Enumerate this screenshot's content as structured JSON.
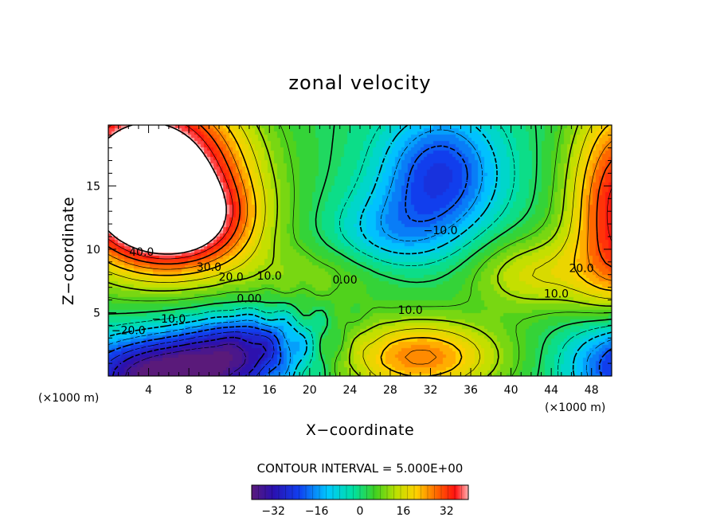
{
  "chart_data": {
    "type": "heatmap",
    "subtype": "filled-contour",
    "title": "zonal velocity",
    "xlabel": "X−coordinate",
    "ylabel": "Z−coordinate",
    "x_unit_left": "(×1000 m)",
    "x_unit_right": "(×1000 m)",
    "xlim": [
      0,
      50
    ],
    "ylim": [
      0,
      19.8
    ],
    "x_ticks": [
      4,
      8,
      12,
      16,
      20,
      24,
      28,
      32,
      36,
      40,
      44,
      48
    ],
    "x_tick_labels": [
      "4",
      "8",
      "12",
      "16",
      "20",
      "24",
      "28",
      "32",
      "36",
      "40",
      "44",
      "48"
    ],
    "y_ticks": [
      5,
      10,
      15
    ],
    "y_tick_labels": [
      "5",
      "10",
      "15"
    ],
    "contour_interval_text": "CONTOUR INTERVAL = 5.000E+00",
    "contour_interval": 5.0,
    "colorbar": {
      "min": -40,
      "max": 40,
      "ticks": [
        -32,
        -16,
        0,
        16,
        32
      ],
      "tick_labels": [
        "−32",
        "−16",
        "0",
        "16",
        "32"
      ]
    },
    "masked_region": "values above 40 left blank (upper-left)",
    "contour_labels": [
      {
        "text": "40.0",
        "x": 3.3,
        "z": 9.5
      },
      {
        "text": "30.0",
        "x": 10.0,
        "z": 8.3
      },
      {
        "text": "20.0",
        "x": 12.2,
        "z": 7.5
      },
      {
        "text": "10.0",
        "x": 16.0,
        "z": 7.6
      },
      {
        "text": "0.00",
        "x": 23.5,
        "z": 7.3
      },
      {
        "text": "0.00",
        "x": 14.0,
        "z": 5.8
      },
      {
        "text": "−10.0",
        "x": 33.0,
        "z": 11.2
      },
      {
        "text": "10.0",
        "x": 30.0,
        "z": 4.9
      },
      {
        "text": "10.0",
        "x": 44.5,
        "z": 6.2
      },
      {
        "text": "20.0",
        "x": 47.0,
        "z": 8.2
      },
      {
        "text": "−10.0",
        "x": 6.0,
        "z": 4.2
      },
      {
        "text": "−20.0",
        "x": 2.0,
        "z": 3.3
      }
    ]
  }
}
